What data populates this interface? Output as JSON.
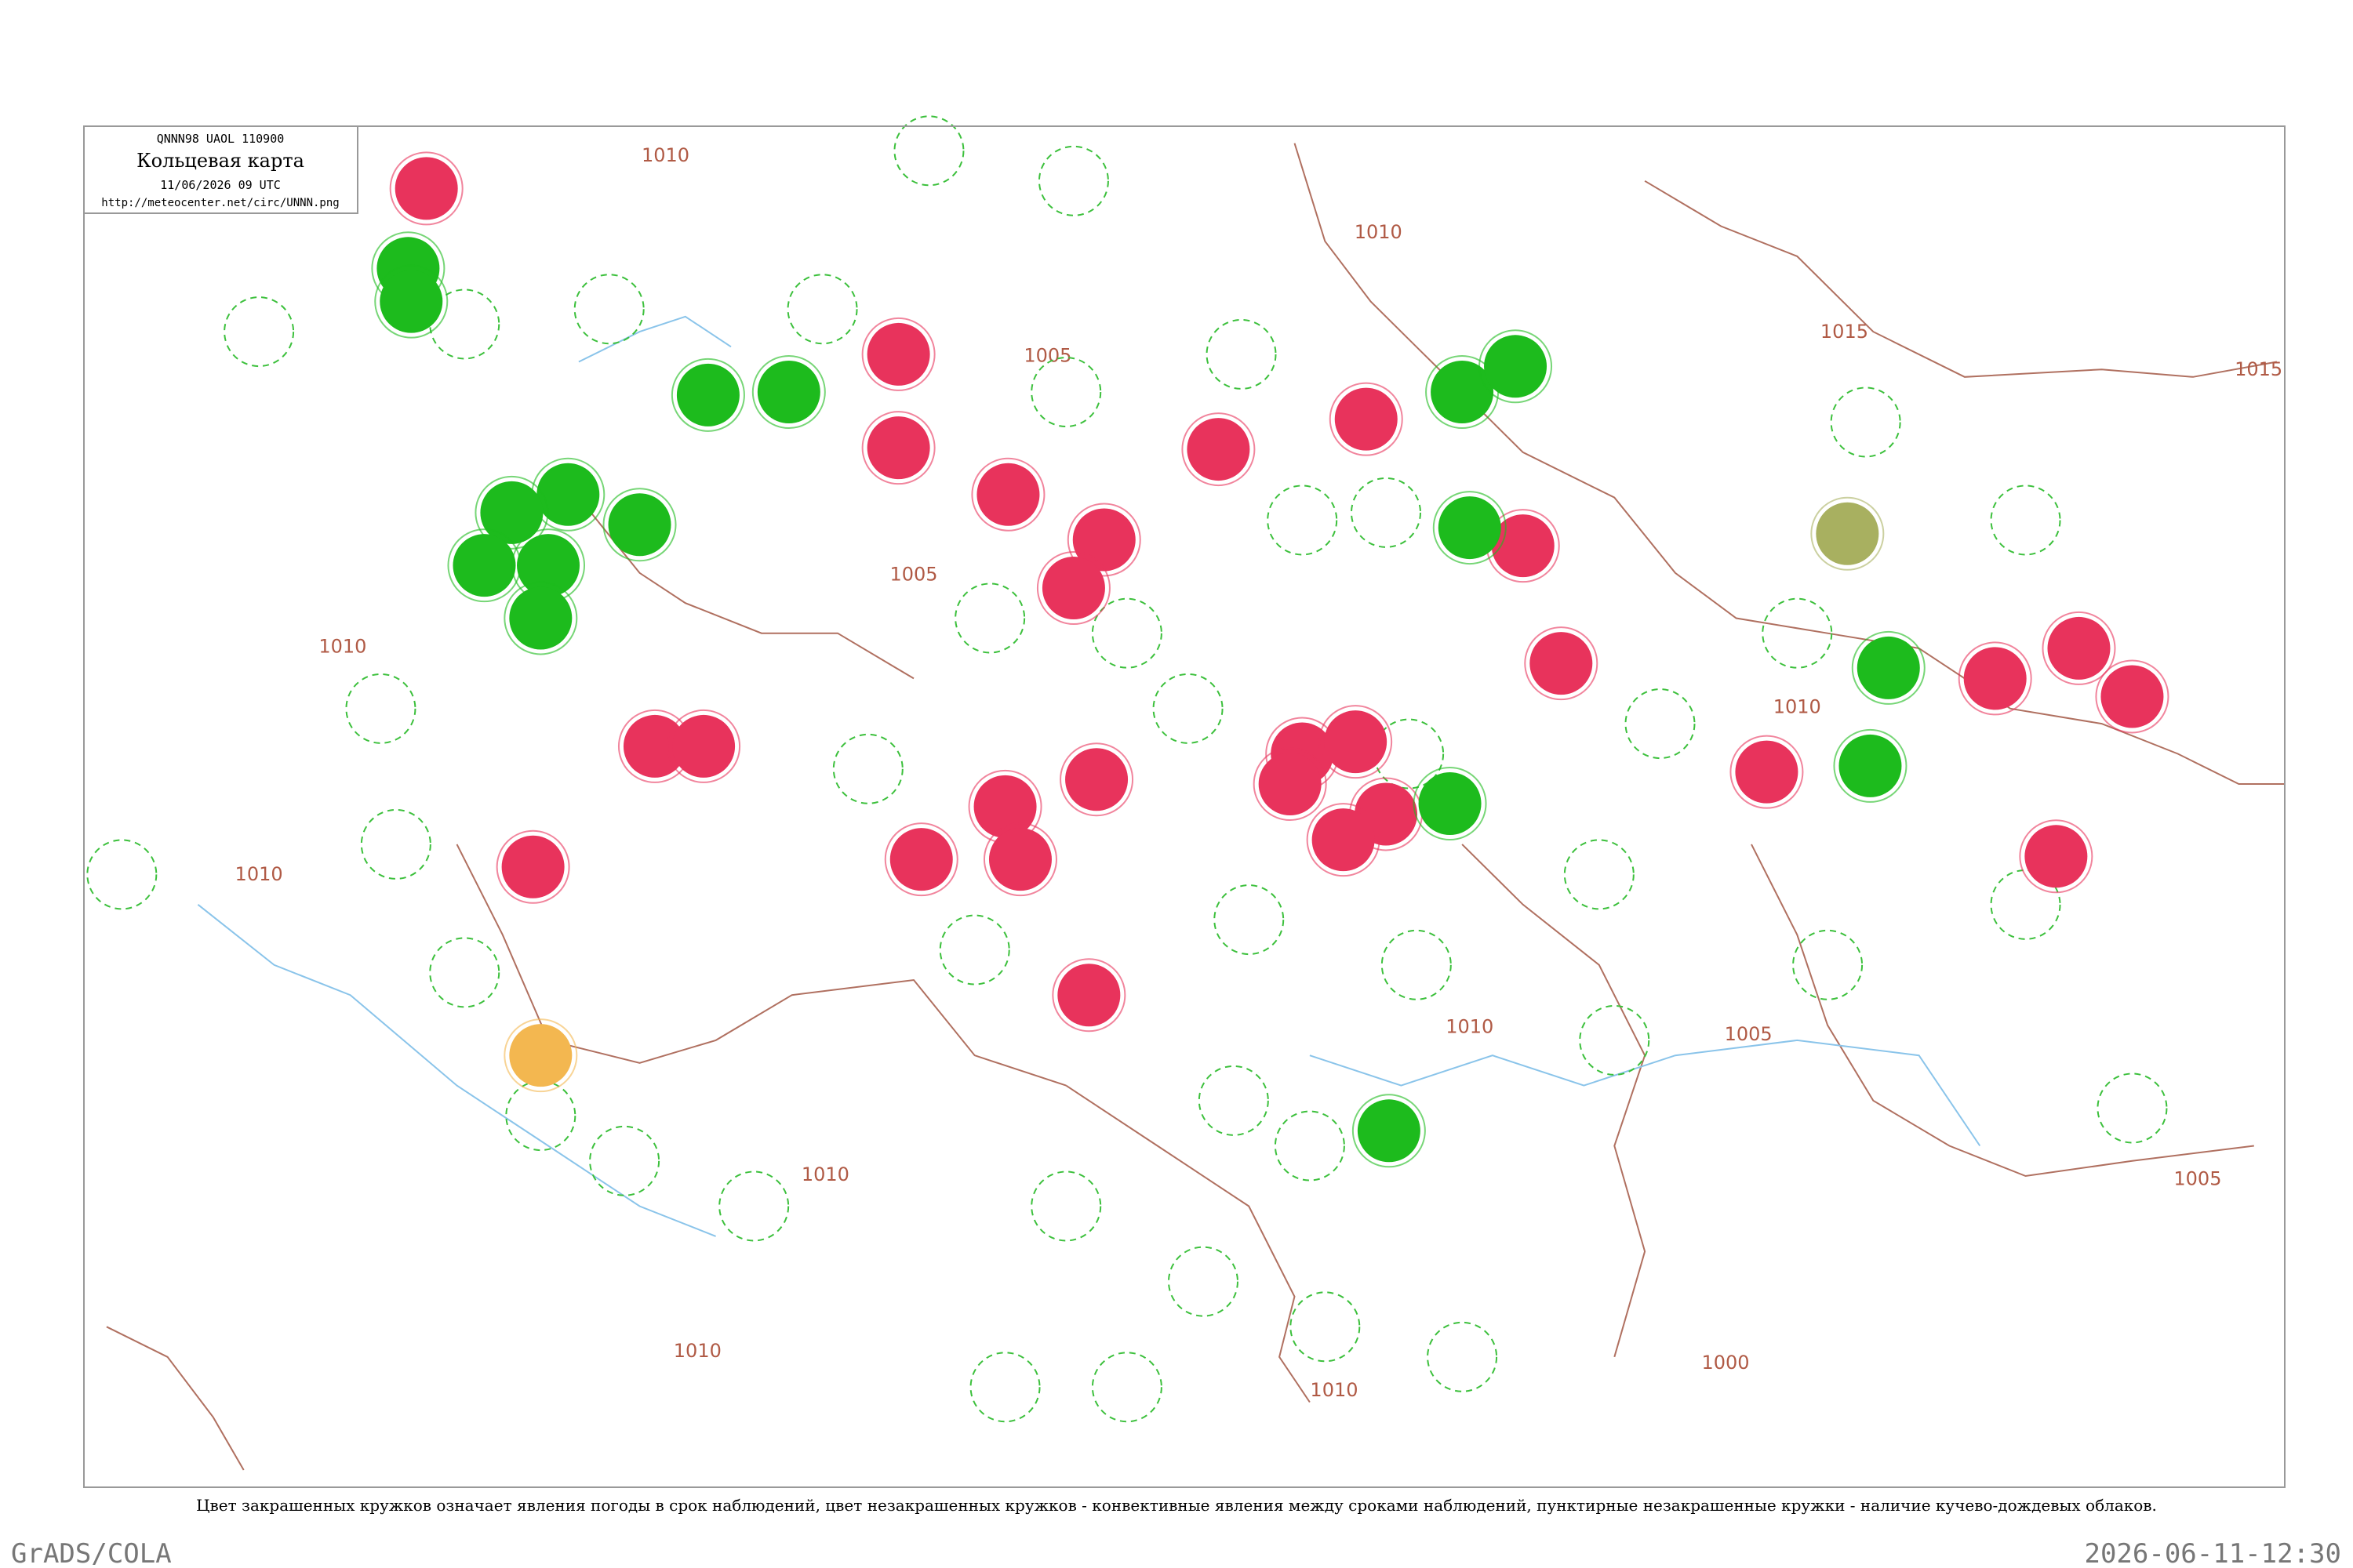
{
  "header": {
    "code": "QNNN98  UAOL  110900",
    "title": "Кольцевая карта",
    "datetime": "11/06/2026 09 UTC",
    "url": "http://meteocenter.net/circ/UNNN.png"
  },
  "caption": "Цвет закрашенных кружков означает явления погоды в срок наблюдений, цвет незакрашенных кружков - конвективные явления между сроками наблюдений, пунктирные незакрашенные кружки - наличие кучево-дождевых облаков.",
  "footer": {
    "left": "GrADS/COLA",
    "right": "2026-06-11-12:30"
  },
  "isobars": [
    "1010",
    "1010",
    "1005",
    "1005",
    "1015",
    "1015",
    "1010",
    "1010",
    "1010",
    "1010",
    "1005",
    "1010",
    "1005",
    "1010",
    "1010",
    "1000"
  ]
}
